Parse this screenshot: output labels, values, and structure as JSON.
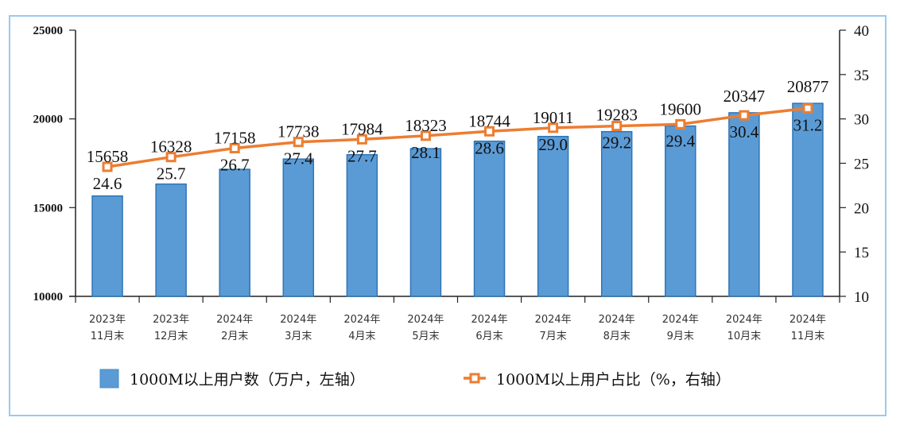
{
  "chart_data": {
    "type": "bar+line",
    "categories": [
      [
        "2023年",
        "11月末"
      ],
      [
        "2023年",
        "12月末"
      ],
      [
        "2024年",
        "2月末"
      ],
      [
        "2024年",
        "3月末"
      ],
      [
        "2024年",
        "4月末"
      ],
      [
        "2024年",
        "5月末"
      ],
      [
        "2024年",
        "6月末"
      ],
      [
        "2024年",
        "7月末"
      ],
      [
        "2024年",
        "8月末"
      ],
      [
        "2024年",
        "9月末"
      ],
      [
        "2024年",
        "10月末"
      ],
      [
        "2024年",
        "11月末"
      ]
    ],
    "series": [
      {
        "name": "1000M以上用户数（万户，左轴）",
        "type": "bar",
        "axis": "left",
        "color": "#5b9bd5",
        "values": [
          15658,
          16328,
          17158,
          17738,
          17984,
          18323,
          18744,
          19011,
          19283,
          19600,
          20347,
          20877
        ]
      },
      {
        "name": "1000M以上用户占比（%，右轴）",
        "type": "line",
        "axis": "right",
        "color": "#ed7d31",
        "values": [
          24.6,
          25.7,
          26.7,
          27.4,
          27.7,
          28.1,
          28.6,
          29.0,
          29.2,
          29.4,
          30.4,
          31.2
        ]
      }
    ],
    "left_axis": {
      "range": [
        10000,
        25000
      ],
      "ticks": [
        "10000",
        "15000",
        "20000",
        "25000"
      ]
    },
    "right_axis": {
      "range": [
        10,
        40
      ],
      "ticks": [
        "10",
        "15",
        "20",
        "25",
        "30",
        "35",
        "40"
      ]
    },
    "grid": false,
    "legend": "bottom"
  }
}
